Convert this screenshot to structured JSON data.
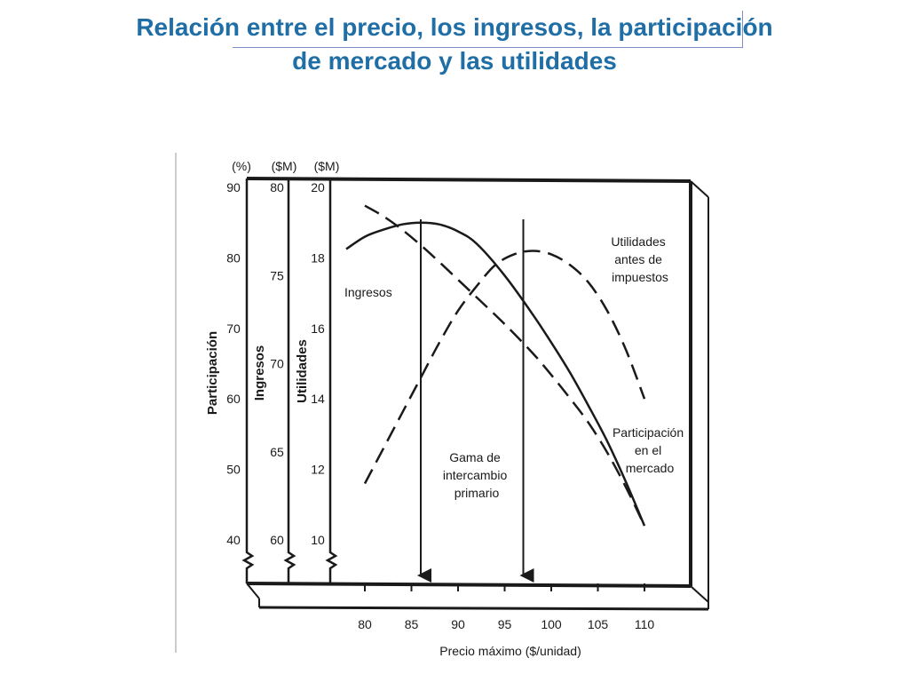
{
  "slide": {
    "title_line1": "Relación entre el precio, los ingresos, la participación",
    "title_line2": "de mercado y las utilidades"
  },
  "chart_data": {
    "type": "line",
    "xlabel": "Precio máximo ($/unidad)",
    "x_ticks": [
      80,
      85,
      90,
      95,
      100,
      105,
      110
    ],
    "xlim": [
      75,
      110
    ],
    "axes": [
      {
        "key": "participacion",
        "label": "Participación",
        "unit": "(%)",
        "ticks": [
          40,
          50,
          60,
          70,
          80,
          90
        ],
        "range": [
          40,
          90
        ]
      },
      {
        "key": "ingresos",
        "label": "Ingresos",
        "unit": "($M)",
        "ticks": [
          60,
          65,
          70,
          75,
          80
        ],
        "range": [
          60,
          80
        ]
      },
      {
        "key": "utilidades",
        "label": "Utilidades",
        "unit": "($M)",
        "ticks": [
          10,
          12,
          14,
          16,
          18,
          20
        ],
        "range": [
          10,
          20
        ]
      }
    ],
    "series": [
      {
        "name": "Ingresos",
        "axis": "ingresos",
        "style": "solid",
        "x": [
          78,
          80,
          82,
          84,
          86,
          88,
          90,
          92,
          95,
          98,
          100,
          102,
          104,
          106,
          108,
          110
        ],
        "y": [
          76.5,
          77.2,
          77.6,
          77.9,
          78.0,
          77.9,
          77.5,
          76.8,
          75.0,
          72.8,
          71.2,
          69.5,
          67.6,
          65.6,
          63.3,
          60.8
        ]
      },
      {
        "name": "Participación en el mercado",
        "axis": "participacion",
        "style": "dashed",
        "x": [
          80,
          82,
          84,
          86,
          88,
          90,
          92,
          95,
          98,
          100,
          102,
          104,
          106,
          108,
          110
        ],
        "y": [
          87.4,
          85.9,
          84.0,
          81.8,
          79.4,
          76.9,
          74.4,
          70.6,
          66.5,
          63.4,
          60.1,
          56.6,
          52.4,
          47.5,
          42.0
        ]
      },
      {
        "name": "Utilidades antes de impuestos",
        "axis": "utilidades",
        "style": "dashed",
        "x": [
          80,
          82,
          84,
          86,
          88,
          90,
          92,
          94,
          96,
          98,
          100,
          102,
          104,
          106,
          108,
          110
        ],
        "y": [
          11.6,
          12.6,
          13.6,
          14.6,
          15.6,
          16.5,
          17.2,
          17.8,
          18.1,
          18.2,
          18.1,
          17.8,
          17.3,
          16.5,
          15.4,
          14.0
        ]
      }
    ],
    "annotations": [
      {
        "text_lines": [
          "Ingresos"
        ]
      },
      {
        "text_lines": [
          "Utilidades",
          "antes de",
          "impuestos"
        ]
      },
      {
        "text_lines": [
          "Participación",
          "en el",
          "mercado"
        ]
      },
      {
        "text_lines": [
          "Gama de",
          "intercambio",
          "primario"
        ]
      }
    ],
    "range_markers": {
      "label": "Gama de intercambio primario",
      "x": [
        86,
        97
      ]
    }
  }
}
